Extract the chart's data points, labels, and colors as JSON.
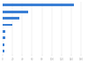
{
  "values": [
    145,
    52,
    34,
    20,
    6,
    5,
    4,
    3
  ],
  "bar_color": "#3a7fd5",
  "background_color": "#ffffff",
  "xlim": [
    0,
    170
  ],
  "bar_height": 0.38,
  "figsize": [
    1.0,
    0.71
  ],
  "dpi": 100
}
